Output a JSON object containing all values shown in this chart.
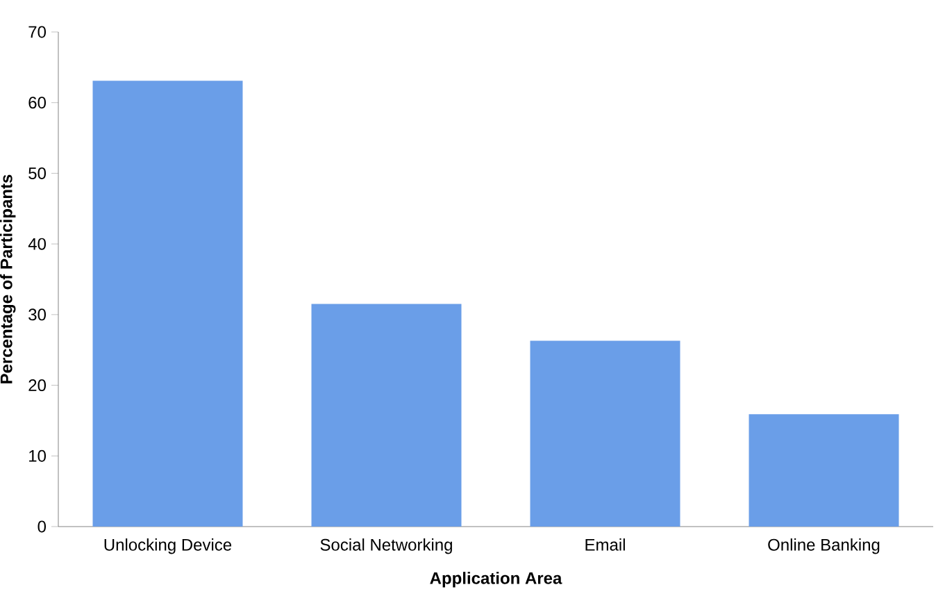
{
  "chart_data": {
    "type": "bar",
    "xlabel": "Application Area",
    "ylabel": "Percentage of Participants",
    "categories": [
      "Unlocking Device",
      "Social Networking",
      "Email",
      "Online Banking"
    ],
    "values": [
      63.1,
      31.5,
      26.3,
      15.9
    ],
    "color": "#6a9ee8",
    "ylim": [
      0,
      70
    ],
    "yticks": [
      0,
      10,
      20,
      30,
      40,
      50,
      60,
      70
    ]
  }
}
